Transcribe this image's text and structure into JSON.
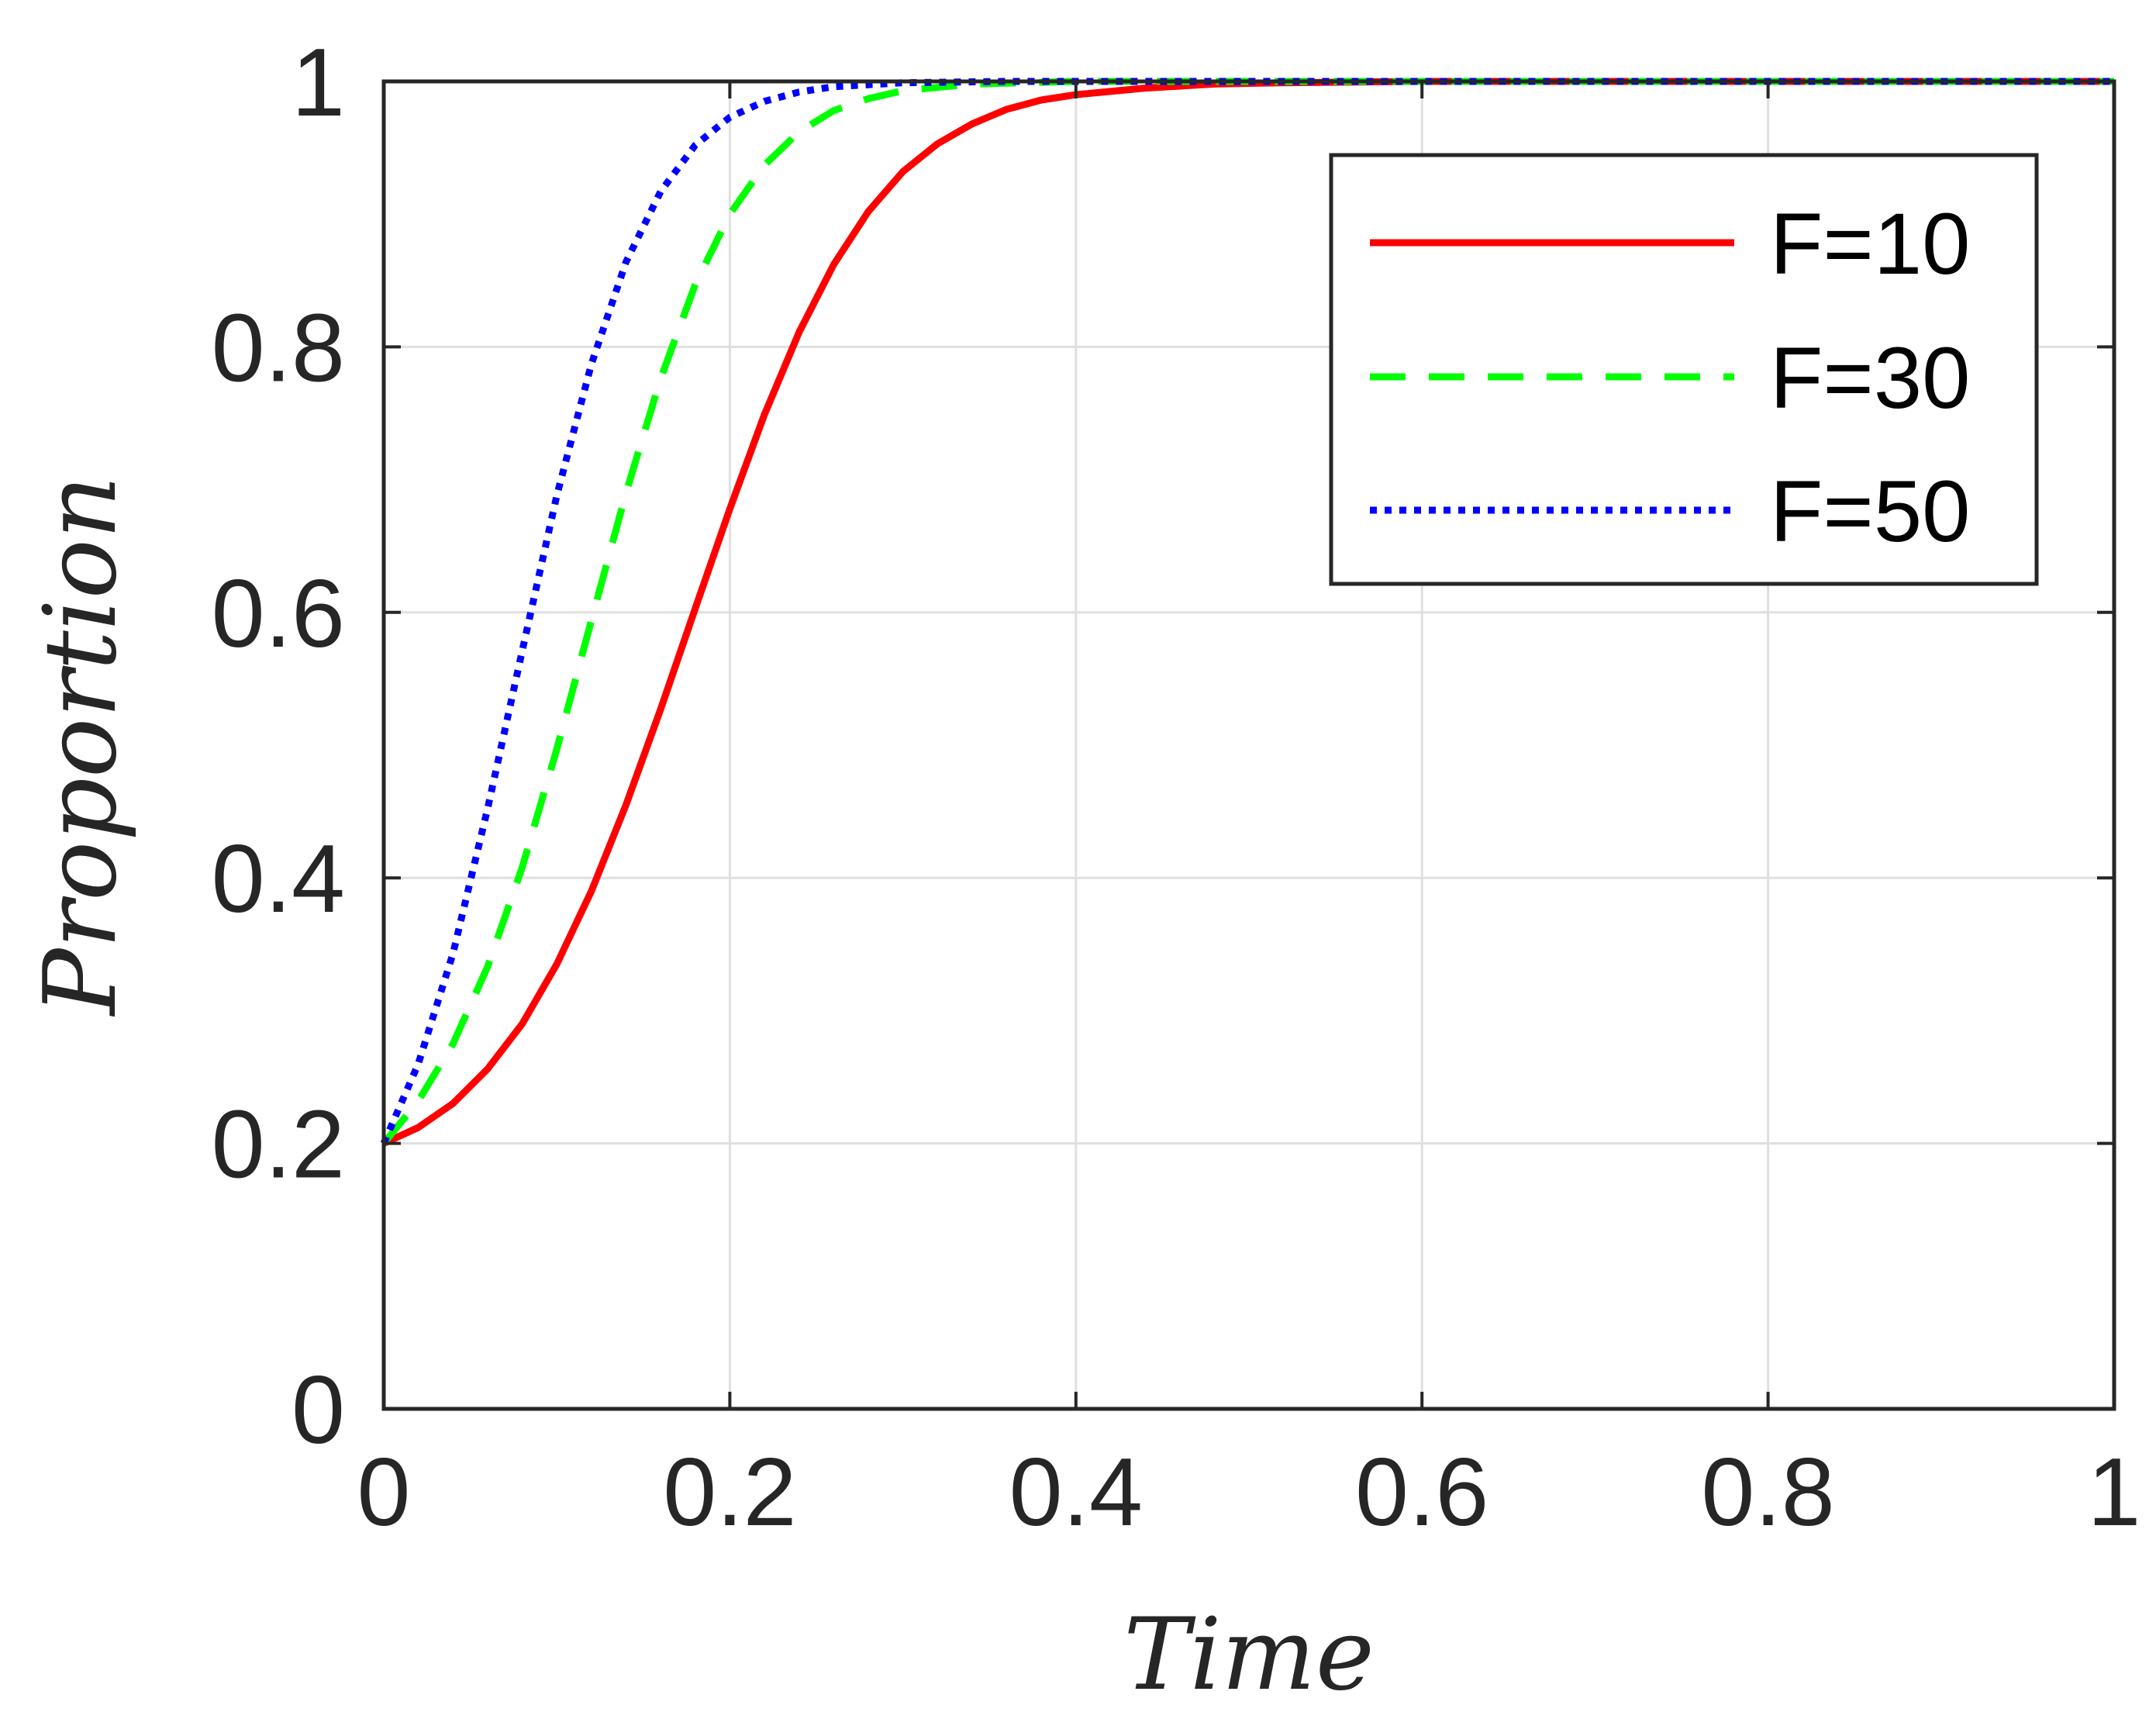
{
  "chart_data": {
    "type": "line",
    "title": "",
    "xlabel": "Time",
    "ylabel": "Proportion",
    "xlim": [
      0,
      1
    ],
    "ylim": [
      0,
      1
    ],
    "xticks": [
      "0",
      "0.2",
      "0.4",
      "0.6",
      "0.8",
      "1"
    ],
    "yticks": [
      "0",
      "0.2",
      "0.4",
      "0.6",
      "0.8",
      "1"
    ],
    "grid": true,
    "legend_position": "top-right",
    "series": [
      {
        "name": "F=10",
        "color": "#ff0000",
        "style": "solid",
        "x": [
          0,
          0.02,
          0.04,
          0.06,
          0.08,
          0.1,
          0.12,
          0.14,
          0.16,
          0.18,
          0.2,
          0.22,
          0.24,
          0.26,
          0.28,
          0.3,
          0.32,
          0.34,
          0.36,
          0.38,
          0.4,
          0.44,
          0.48,
          0.52,
          0.6,
          0.7,
          0.8,
          0.9,
          1.0
        ],
        "y": [
          0.2,
          0.212,
          0.23,
          0.256,
          0.29,
          0.335,
          0.39,
          0.455,
          0.527,
          0.603,
          0.678,
          0.749,
          0.811,
          0.862,
          0.902,
          0.932,
          0.953,
          0.968,
          0.979,
          0.986,
          0.99,
          0.995,
          0.998,
          0.999,
          1.0,
          1.0,
          1.0,
          1.0,
          1.0
        ]
      },
      {
        "name": "F=30",
        "color": "#00ff00",
        "style": "dashed",
        "x": [
          0,
          0.02,
          0.04,
          0.06,
          0.08,
          0.1,
          0.12,
          0.14,
          0.16,
          0.18,
          0.2,
          0.22,
          0.24,
          0.26,
          0.28,
          0.3,
          0.34,
          0.4,
          0.5,
          0.6,
          0.8,
          1.0
        ],
        "y": [
          0.2,
          0.232,
          0.275,
          0.333,
          0.408,
          0.497,
          0.594,
          0.69,
          0.776,
          0.847,
          0.9,
          0.937,
          0.962,
          0.978,
          0.987,
          0.993,
          0.998,
          1.0,
          1.0,
          1.0,
          1.0,
          1.0
        ]
      },
      {
        "name": "F=50",
        "color": "#0000ff",
        "style": "dotted",
        "x": [
          0,
          0.02,
          0.04,
          0.06,
          0.08,
          0.1,
          0.12,
          0.14,
          0.16,
          0.18,
          0.2,
          0.22,
          0.24,
          0.26,
          0.3,
          0.36,
          0.4,
          0.5,
          0.6,
          0.8,
          1.0
        ],
        "y": [
          0.2,
          0.26,
          0.343,
          0.452,
          0.571,
          0.688,
          0.787,
          0.864,
          0.917,
          0.952,
          0.973,
          0.985,
          0.992,
          0.996,
          0.999,
          1.0,
          1.0,
          1.0,
          1.0,
          1.0,
          1.0
        ]
      }
    ]
  }
}
